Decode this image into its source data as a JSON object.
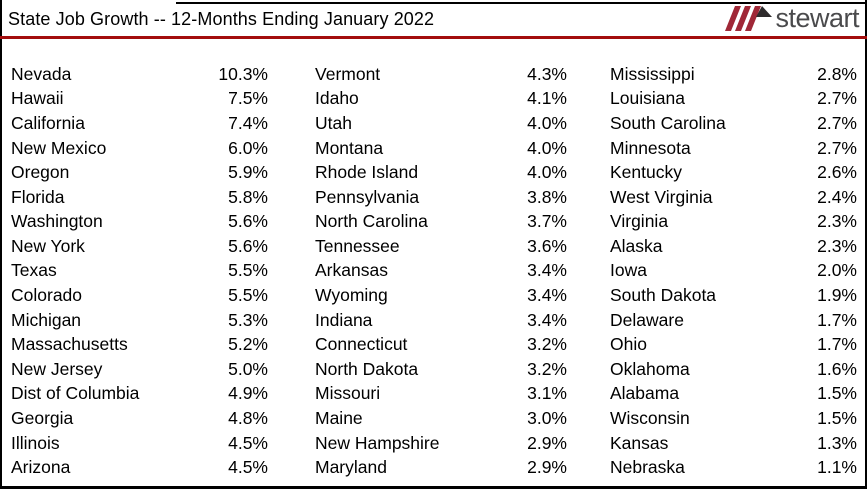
{
  "title": "State Job Growth -- 12-Months Ending January 2022",
  "colors": {
    "background": "#ffffff",
    "border": "#000000",
    "text": "#000000",
    "rule_red": "#a30d0d"
  },
  "logo": {
    "text": "stewart",
    "icon": "stewart-slashes-icon",
    "stripe_red": "#a02837",
    "triangle_dark": "#2e2b2c",
    "text_gray": "#4a4a4c"
  },
  "table": {
    "columns": [
      {
        "rows": [
          {
            "state": "Nevada",
            "value": "10.3%"
          },
          {
            "state": "Hawaii",
            "value": "7.5%"
          },
          {
            "state": "California",
            "value": "7.4%"
          },
          {
            "state": "New Mexico",
            "value": "6.0%"
          },
          {
            "state": "Oregon",
            "value": "5.9%"
          },
          {
            "state": "Florida",
            "value": "5.8%"
          },
          {
            "state": "Washington",
            "value": "5.6%"
          },
          {
            "state": "New York",
            "value": "5.6%"
          },
          {
            "state": "Texas",
            "value": "5.5%"
          },
          {
            "state": "Colorado",
            "value": "5.5%"
          },
          {
            "state": "Michigan",
            "value": "5.3%"
          },
          {
            "state": "Massachusetts",
            "value": "5.2%"
          },
          {
            "state": "New Jersey",
            "value": "5.0%"
          },
          {
            "state": "Dist of Columbia",
            "value": "4.9%"
          },
          {
            "state": "Georgia",
            "value": "4.8%"
          },
          {
            "state": "Illinois",
            "value": "4.5%"
          },
          {
            "state": "Arizona",
            "value": "4.5%"
          }
        ]
      },
      {
        "rows": [
          {
            "state": "Vermont",
            "value": "4.3%"
          },
          {
            "state": "Idaho",
            "value": "4.1%"
          },
          {
            "state": "Utah",
            "value": "4.0%"
          },
          {
            "state": "Montana",
            "value": "4.0%"
          },
          {
            "state": "Rhode Island",
            "value": "4.0%"
          },
          {
            "state": "Pennsylvania",
            "value": "3.8%"
          },
          {
            "state": "North Carolina",
            "value": "3.7%"
          },
          {
            "state": "Tennessee",
            "value": "3.6%"
          },
          {
            "state": "Arkansas",
            "value": "3.4%"
          },
          {
            "state": "Wyoming",
            "value": "3.4%"
          },
          {
            "state": "Indiana",
            "value": "3.4%"
          },
          {
            "state": "Connecticut",
            "value": "3.2%"
          },
          {
            "state": "North Dakota",
            "value": "3.2%"
          },
          {
            "state": "Missouri",
            "value": "3.1%"
          },
          {
            "state": "Maine",
            "value": "3.0%"
          },
          {
            "state": "New Hampshire",
            "value": "2.9%"
          },
          {
            "state": "Maryland",
            "value": "2.9%"
          }
        ]
      },
      {
        "rows": [
          {
            "state": "Mississippi",
            "value": "2.8%"
          },
          {
            "state": "Louisiana",
            "value": "2.7%"
          },
          {
            "state": "South Carolina",
            "value": "2.7%"
          },
          {
            "state": "Minnesota",
            "value": "2.7%"
          },
          {
            "state": "Kentucky",
            "value": "2.6%"
          },
          {
            "state": "West Virginia",
            "value": "2.4%"
          },
          {
            "state": "Virginia",
            "value": "2.3%"
          },
          {
            "state": "Alaska",
            "value": "2.3%"
          },
          {
            "state": "Iowa",
            "value": "2.0%"
          },
          {
            "state": "South Dakota",
            "value": "1.9%"
          },
          {
            "state": "Delaware",
            "value": "1.7%"
          },
          {
            "state": "Ohio",
            "value": "1.7%"
          },
          {
            "state": "Oklahoma",
            "value": "1.6%"
          },
          {
            "state": "Alabama",
            "value": "1.5%"
          },
          {
            "state": "Wisconsin",
            "value": "1.5%"
          },
          {
            "state": "Kansas",
            "value": "1.3%"
          },
          {
            "state": "Nebraska",
            "value": "1.1%"
          }
        ]
      }
    ]
  }
}
